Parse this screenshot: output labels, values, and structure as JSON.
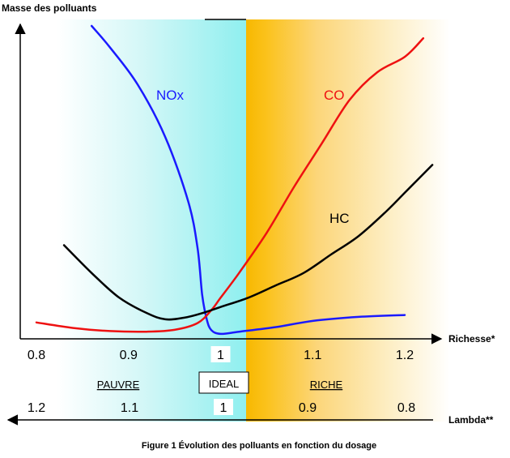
{
  "chart_data": {
    "type": "line",
    "title": "",
    "ylabel": "Masse des polluants",
    "xlabel": "Richesse*",
    "xlabel_secondary": "Lambda**",
    "xlim": [
      0.8,
      1.22
    ],
    "x_ticks": [
      "0.8",
      "0.9",
      "1",
      "1.1",
      "1.2"
    ],
    "lambda_ticks": [
      "1.2",
      "1.1",
      "1",
      "0.9",
      "0.8"
    ],
    "zones": {
      "lean": "PAUVRE",
      "ideal": "IDEAL",
      "rich": "RICHE"
    },
    "series": [
      {
        "name": "NOx",
        "color": "#1a1aff",
        "points": [
          [
            0.86,
            1.0
          ],
          [
            0.88,
            0.93
          ],
          [
            0.91,
            0.81
          ],
          [
            0.94,
            0.64
          ],
          [
            0.965,
            0.43
          ],
          [
            0.975,
            0.28
          ],
          [
            0.98,
            0.13
          ],
          [
            0.985,
            0.05
          ],
          [
            0.99,
            0.015
          ],
          [
            1.0,
            0.003
          ],
          [
            1.02,
            0.01
          ],
          [
            1.06,
            0.025
          ],
          [
            1.1,
            0.045
          ],
          [
            1.15,
            0.058
          ],
          [
            1.2,
            0.064
          ]
        ]
      },
      {
        "name": "CO",
        "color": "#ee1111",
        "points": [
          [
            0.8,
            0.04
          ],
          [
            0.84,
            0.022
          ],
          [
            0.88,
            0.012
          ],
          [
            0.92,
            0.01
          ],
          [
            0.95,
            0.016
          ],
          [
            0.975,
            0.038
          ],
          [
            0.99,
            0.08
          ],
          [
            1.0,
            0.12
          ],
          [
            1.02,
            0.2
          ],
          [
            1.05,
            0.33
          ],
          [
            1.08,
            0.48
          ],
          [
            1.11,
            0.62
          ],
          [
            1.14,
            0.76
          ],
          [
            1.17,
            0.85
          ],
          [
            1.2,
            0.9
          ],
          [
            1.22,
            0.96
          ]
        ]
      },
      {
        "name": "HC",
        "color": "#000000",
        "points": [
          [
            0.83,
            0.29
          ],
          [
            0.86,
            0.2
          ],
          [
            0.89,
            0.12
          ],
          [
            0.92,
            0.07
          ],
          [
            0.94,
            0.05
          ],
          [
            0.96,
            0.055
          ],
          [
            0.98,
            0.07
          ],
          [
            1.0,
            0.09
          ],
          [
            1.03,
            0.12
          ],
          [
            1.06,
            0.16
          ],
          [
            1.09,
            0.2
          ],
          [
            1.12,
            0.26
          ],
          [
            1.15,
            0.32
          ],
          [
            1.18,
            0.4
          ],
          [
            1.2,
            0.46
          ],
          [
            1.23,
            0.55
          ]
        ]
      }
    ]
  },
  "caption": "Figure 1 Évolution des polluants en fonction du dosage",
  "colors": {
    "lean_zone": "#8fefef",
    "rich_zone": "#fbbf00"
  }
}
